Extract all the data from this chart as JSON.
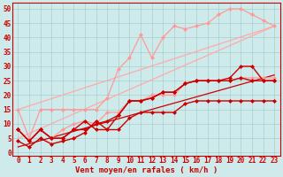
{
  "background_color": "#ceeaea",
  "grid_color": "#a8cece",
  "xlabel": "Vent moyen/en rafales ( km/h )",
  "xlabel_color": "#cc0000",
  "xlabel_fontsize": 6.5,
  "x_ticks": [
    0,
    1,
    2,
    3,
    4,
    5,
    6,
    7,
    8,
    9,
    10,
    11,
    12,
    13,
    14,
    15,
    16,
    17,
    18,
    19,
    20,
    21,
    22,
    23
  ],
  "ylim": [
    -1,
    52
  ],
  "xlim": [
    -0.5,
    23.5
  ],
  "yticks": [
    0,
    5,
    10,
    15,
    20,
    25,
    30,
    35,
    40,
    45,
    50
  ],
  "tick_color": "#cc0000",
  "tick_fontsize": 5.5,
  "lines": [
    {
      "x": [
        0,
        23
      ],
      "y": [
        5,
        44
      ],
      "color": "#ffaaaa",
      "lw": 0.9,
      "marker": null,
      "ms": 0,
      "zorder": 1
    },
    {
      "x": [
        0,
        23
      ],
      "y": [
        15,
        44
      ],
      "color": "#ffaaaa",
      "lw": 0.9,
      "marker": null,
      "ms": 0,
      "zorder": 1
    },
    {
      "x": [
        0,
        1,
        2,
        3,
        4,
        5,
        6,
        7,
        8,
        9,
        10,
        11,
        12,
        13,
        14,
        15,
        16,
        17,
        18,
        19,
        20,
        21,
        22,
        23
      ],
      "y": [
        8,
        4,
        8,
        5,
        8,
        10,
        11,
        10,
        14,
        14,
        18,
        18,
        20,
        20,
        20,
        24,
        25,
        25,
        25,
        25,
        26,
        26,
        26,
        26
      ],
      "color": "#ff9999",
      "lw": 0.9,
      "marker": "D",
      "ms": 2.0,
      "zorder": 2
    },
    {
      "x": [
        0,
        1,
        2,
        3,
        4,
        5,
        6,
        7,
        8,
        9,
        10,
        11,
        12,
        13,
        14,
        15,
        16,
        17,
        18,
        19,
        20,
        21,
        22,
        23
      ],
      "y": [
        15,
        5,
        15,
        15,
        15,
        15,
        15,
        15,
        19,
        29,
        33,
        41,
        33,
        40,
        44,
        43,
        44,
        45,
        48,
        50,
        50,
        48,
        46,
        44
      ],
      "color": "#ff9999",
      "lw": 0.9,
      "marker": "D",
      "ms": 2.0,
      "zorder": 2
    },
    {
      "x": [
        0,
        23
      ],
      "y": [
        2,
        27
      ],
      "color": "#cc0000",
      "lw": 0.9,
      "marker": null,
      "ms": 0,
      "zorder": 1
    },
    {
      "x": [
        0,
        1,
        2,
        3,
        4,
        5,
        6,
        7,
        8,
        9,
        10,
        11,
        12,
        13,
        14,
        15,
        16,
        17,
        18,
        19,
        20,
        21,
        22,
        23
      ],
      "y": [
        8,
        4,
        8,
        5,
        5,
        8,
        8,
        10,
        11,
        13,
        18,
        18,
        19,
        21,
        21,
        24,
        25,
        25,
        25,
        25,
        26,
        25,
        25,
        25
      ],
      "color": "#cc0000",
      "lw": 1.0,
      "marker": "D",
      "ms": 2.0,
      "zorder": 3
    },
    {
      "x": [
        0,
        1,
        2,
        3,
        4,
        5,
        6,
        7,
        8,
        9,
        10,
        11,
        12,
        13,
        14,
        15,
        16,
        17,
        18,
        19,
        20,
        21,
        22,
        23
      ],
      "y": [
        8,
        4,
        8,
        5,
        5,
        8,
        11,
        8,
        8,
        13,
        18,
        18,
        19,
        21,
        21,
        24,
        25,
        25,
        25,
        26,
        30,
        30,
        25,
        25
      ],
      "color": "#cc0000",
      "lw": 1.0,
      "marker": "D",
      "ms": 2.0,
      "zorder": 3
    },
    {
      "x": [
        0,
        1,
        2,
        3,
        4,
        5,
        6,
        7,
        8,
        9,
        10,
        11,
        12,
        13,
        14,
        15,
        16,
        17,
        18,
        19,
        20,
        21,
        22,
        23
      ],
      "y": [
        4,
        2,
        5,
        3,
        4,
        5,
        7,
        11,
        8,
        8,
        12,
        14,
        14,
        14,
        14,
        17,
        18,
        18,
        18,
        18,
        18,
        18,
        18,
        18
      ],
      "color": "#cc0000",
      "lw": 1.0,
      "marker": "D",
      "ms": 2.0,
      "zorder": 3
    }
  ]
}
